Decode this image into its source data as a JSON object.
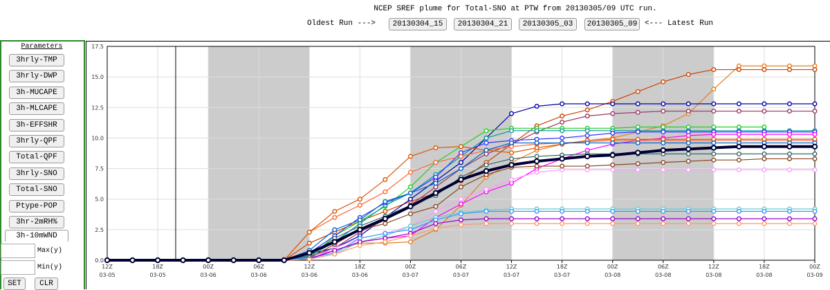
{
  "header": {
    "title": "NCEP SREF plume for Total-SNO at PTW from 20130305/09 UTC run.",
    "oldest": "Oldest Run --->",
    "runs": [
      "20130304_15",
      "20130304_21",
      "20130305_03",
      "20130305_09"
    ],
    "latest": "<--- Latest Run"
  },
  "sidebar": {
    "heading": "Parameters",
    "buttons": [
      "3hrly-TMP",
      "3hrly-DWP",
      "3h-MUCAPE",
      "3h-MLCAPE",
      "3h-EFFSHR",
      "3hrly-QPF",
      "Total-QPF",
      "3hrly-SNO",
      "Total-SNO",
      "Ptype-POP",
      "3hr-2mRH%",
      "3h-10mWND"
    ],
    "max_label": "Max(y)",
    "min_label": "Min(y)",
    "set": "SET",
    "clr": "CLR"
  },
  "chart_data": {
    "type": "line",
    "ylim": [
      0,
      17.5
    ],
    "yticks": [
      {
        "value": 0,
        "label": "0.0"
      },
      2.5,
      {
        "value": 5,
        "label": "5.0"
      },
      7.5,
      {
        "value": 10,
        "label": "10.0"
      },
      12.5,
      {
        "value": 15,
        "label": "15.0"
      },
      17.5
    ],
    "categories": [
      [
        "12Z",
        "03-05"
      ],
      null,
      [
        "18Z",
        "03-05"
      ],
      null,
      [
        "00Z",
        "03-06"
      ],
      null,
      [
        "06Z",
        "03-06"
      ],
      null,
      [
        "12Z",
        "03-06"
      ],
      null,
      [
        "18Z",
        "03-06"
      ],
      null,
      [
        "00Z",
        "03-07"
      ],
      null,
      [
        "06Z",
        "03-07"
      ],
      null,
      [
        "12Z",
        "03-07"
      ],
      null,
      [
        "18Z",
        "03-07"
      ],
      null,
      [
        "00Z",
        "03-08"
      ],
      null,
      [
        "06Z",
        "03-08"
      ],
      null,
      [
        "12Z",
        "03-08"
      ],
      null,
      [
        "18Z",
        "03-08"
      ],
      null,
      [
        "00Z",
        "03-09"
      ]
    ],
    "shaded": [
      [
        4,
        8
      ],
      [
        12,
        16
      ],
      [
        20,
        24
      ]
    ],
    "grid": true,
    "series": [
      {
        "color": "#e67e22",
        "values": [
          0,
          0,
          0,
          0,
          0,
          0,
          0,
          0,
          0.2,
          0.8,
          1.4,
          1.4,
          1.5,
          2.5,
          4.5,
          6.8,
          8.0,
          9.0,
          9.5,
          9.8,
          10.0,
          10.5,
          11.0,
          12.0,
          14.0,
          15.9,
          15.9,
          15.9,
          15.9
        ]
      },
      {
        "color": "#cc4400",
        "values": [
          0,
          0,
          0,
          0,
          0,
          0,
          0,
          0,
          1.4,
          2.3,
          3.2,
          4.0,
          4.8,
          5.5,
          6.5,
          8.0,
          9.5,
          11.0,
          11.8,
          12.3,
          13.0,
          13.8,
          14.6,
          15.2,
          15.6,
          15.6,
          15.6,
          15.6,
          15.6
        ]
      },
      {
        "color": "#0000aa",
        "values": [
          0,
          0,
          0,
          0,
          0,
          0,
          0,
          0,
          0.5,
          1.0,
          2.0,
          3.5,
          5.0,
          6.5,
          8.0,
          10.0,
          12.0,
          12.6,
          12.8,
          12.8,
          12.8,
          12.8,
          12.8,
          12.8,
          12.8,
          12.8,
          12.8,
          12.8,
          12.8
        ]
      },
      {
        "color": "#993366",
        "values": [
          0,
          0,
          0,
          0,
          0,
          0,
          0,
          0,
          0.3,
          1.0,
          2.3,
          3.3,
          4.5,
          6.0,
          7.5,
          8.7,
          9.5,
          10.5,
          11.3,
          11.8,
          12.0,
          12.1,
          12.2,
          12.2,
          12.2,
          12.2,
          12.2,
          12.2,
          12.2
        ]
      },
      {
        "color": "#22cc22",
        "values": [
          0,
          0,
          0,
          0,
          0,
          0,
          0,
          0,
          0.2,
          2.0,
          3.2,
          4.4,
          6.0,
          8.0,
          9.3,
          10.6,
          10.8,
          10.8,
          10.8,
          10.8,
          10.8,
          10.9,
          10.9,
          10.9,
          10.9,
          10.9,
          10.9,
          null,
          null
        ]
      },
      {
        "color": "#009999",
        "values": [
          0,
          0,
          0,
          0,
          0,
          0,
          0,
          0,
          0.3,
          1.5,
          3.0,
          4.5,
          5.5,
          7.0,
          8.5,
          10.0,
          10.6,
          10.6,
          10.6,
          10.6,
          10.6,
          10.6,
          10.6,
          10.6,
          10.6,
          10.6,
          10.6,
          10.6,
          10.6
        ]
      },
      {
        "color": "#3333ff",
        "values": [
          0,
          0,
          0,
          0,
          0,
          0,
          0,
          0,
          0.6,
          2.0,
          3.5,
          4.7,
          5.5,
          6.8,
          8.8,
          9.6,
          9.8,
          9.9,
          10.0,
          10.2,
          10.4,
          10.5,
          10.5,
          10.5,
          10.5,
          10.5,
          10.5,
          10.5,
          10.5
        ]
      },
      {
        "color": "#ff00ff",
        "values": [
          0,
          0,
          0,
          0,
          0,
          0,
          0,
          0,
          0.2,
          0.8,
          1.5,
          1.8,
          2.0,
          3.5,
          4.6,
          5.6,
          6.3,
          7.5,
          8.3,
          9.0,
          9.5,
          9.8,
          10.0,
          10.2,
          10.3,
          10.3,
          10.3,
          10.3,
          10.3
        ]
      },
      {
        "color": "#ff6633",
        "values": [
          0,
          0,
          0,
          0,
          0,
          0,
          0,
          0,
          2.3,
          3.5,
          4.5,
          5.6,
          7.2,
          8.0,
          8.5,
          9.0,
          9.3,
          9.5,
          9.6,
          9.7,
          9.8,
          9.8,
          9.8,
          9.8,
          9.8,
          9.8,
          9.8,
          9.8,
          9.8
        ]
      },
      {
        "color": "#dd5500",
        "values": [
          0,
          0,
          0,
          0,
          0,
          0,
          0,
          0,
          2.3,
          4.0,
          5.0,
          6.6,
          8.5,
          9.2,
          9.3,
          9.0,
          8.8,
          9.2,
          9.5,
          9.8,
          9.9,
          9.9,
          9.9,
          9.9,
          9.9,
          9.9,
          9.9,
          9.9,
          9.9
        ]
      },
      {
        "color": "#ff99ff",
        "values": [
          0,
          0,
          0,
          0,
          0,
          0,
          0,
          0,
          0.1,
          1.0,
          1.8,
          2.2,
          2.8,
          4.0,
          5.0,
          5.8,
          6.6,
          7.2,
          7.4,
          7.4,
          7.4,
          7.4,
          7.4,
          7.4,
          7.4,
          7.4,
          7.4,
          7.4,
          7.4
        ]
      },
      {
        "color": "#884422",
        "values": [
          0,
          0,
          0,
          0,
          0,
          0,
          0,
          0,
          0.2,
          1.3,
          2.5,
          3.0,
          3.8,
          4.4,
          6.0,
          7.0,
          7.6,
          7.7,
          7.7,
          7.7,
          7.8,
          7.9,
          8.0,
          8.1,
          8.2,
          8.2,
          8.3,
          8.3,
          8.3
        ]
      },
      {
        "color": "#66cccc",
        "values": [
          0,
          0,
          0,
          0,
          0,
          0,
          0,
          0,
          0.1,
          0.5,
          1.5,
          2.0,
          2.8,
          3.5,
          3.9,
          4.1,
          4.2,
          4.2,
          4.2,
          4.2,
          4.2,
          4.2,
          4.2,
          4.2,
          4.2,
          4.2,
          4.2,
          4.2,
          4.2
        ]
      },
      {
        "color": "#3399ff",
        "values": [
          0,
          0,
          0,
          0,
          0,
          0,
          0,
          0,
          0.2,
          0.6,
          1.8,
          2.2,
          2.5,
          3.3,
          3.8,
          4.0,
          4.0,
          4.0,
          4.0,
          4.0,
          4.0,
          4.0,
          4.0,
          4.0,
          4.0,
          4.0,
          4.0,
          4.0,
          4.0
        ]
      },
      {
        "color": "#9900cc",
        "values": [
          0,
          0,
          0,
          0,
          0,
          0,
          0,
          0,
          0.1,
          0.8,
          1.5,
          1.8,
          2.2,
          3.0,
          3.3,
          3.4,
          3.4,
          3.4,
          3.4,
          3.4,
          3.4,
          3.4,
          3.4,
          3.4,
          3.4,
          3.4,
          3.4,
          3.4,
          3.4
        ]
      },
      {
        "color": "#ff9966",
        "values": [
          0,
          0,
          0,
          0,
          0,
          0,
          0,
          0,
          0.1,
          0.5,
          1.2,
          1.5,
          2.0,
          2.6,
          2.9,
          3.0,
          3.0,
          3.0,
          3.0,
          3.0,
          3.0,
          3.0,
          3.0,
          3.0,
          3.0,
          3.0,
          3.0,
          3.0,
          3.0
        ]
      },
      {
        "color": "#0066cc",
        "values": [
          0,
          0,
          0,
          0,
          0,
          0,
          0,
          0,
          0.8,
          2.5,
          3.3,
          4.8,
          5.5,
          6.3,
          7.5,
          9.0,
          9.6,
          9.6,
          9.6,
          9.6,
          9.6,
          9.6,
          9.6,
          9.6,
          9.6,
          9.6,
          9.6,
          9.6,
          9.6
        ]
      },
      {
        "color": "#336666",
        "values": [
          0,
          0,
          0,
          0,
          0,
          0,
          0,
          0,
          0.4,
          1.8,
          2.8,
          3.6,
          4.5,
          5.3,
          6.8,
          7.8,
          8.3,
          8.5,
          8.6,
          8.7,
          8.7,
          8.7,
          8.7,
          8.7,
          8.7,
          8.7,
          8.7,
          8.7,
          8.7
        ]
      },
      {
        "color": "#000033",
        "line_width": 4,
        "values": [
          0,
          0,
          0,
          0,
          0,
          0,
          0,
          0,
          0.6,
          1.5,
          2.5,
          3.4,
          4.4,
          5.5,
          6.6,
          7.3,
          7.8,
          8.1,
          8.3,
          8.5,
          8.6,
          8.8,
          9.0,
          9.1,
          9.2,
          9.3,
          9.3,
          9.3,
          9.3
        ]
      }
    ]
  }
}
